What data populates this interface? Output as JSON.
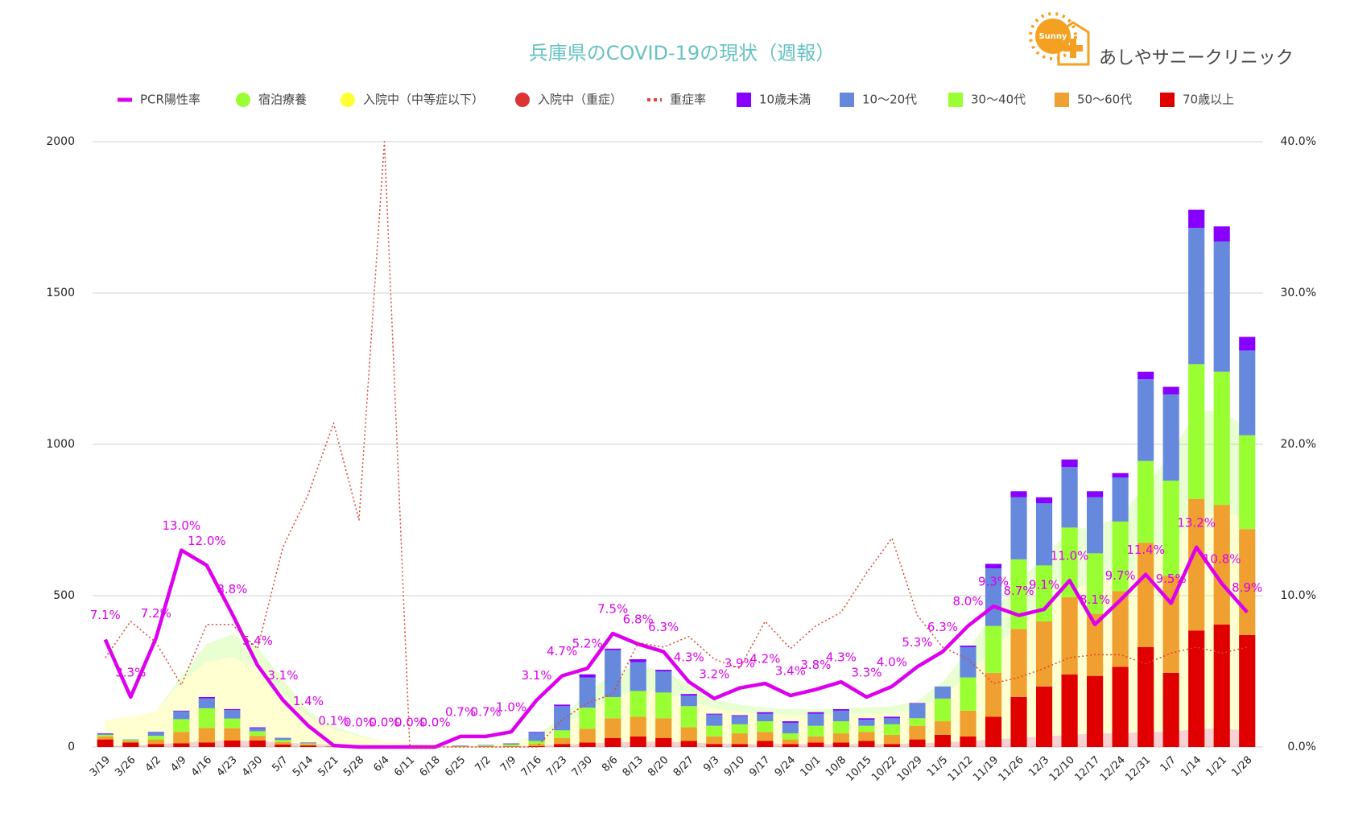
{
  "chart_data": {
    "type": "combo",
    "title": "兵庫県のCOVID-19の現状（週報）",
    "logo_text": "あしやサニークリニック",
    "logo_badge": "Sunny",
    "categories": [
      "3/19",
      "3/26",
      "4/2",
      "4/9",
      "4/16",
      "4/23",
      "4/30",
      "5/7",
      "5/14",
      "5/21",
      "5/28",
      "6/4",
      "6/11",
      "6/18",
      "6/25",
      "7/2",
      "7/9",
      "7/16",
      "7/23",
      "7/30",
      "8/6",
      "8/13",
      "8/20",
      "8/27",
      "9/3",
      "9/10",
      "9/17",
      "9/24",
      "10/1",
      "10/8",
      "10/15",
      "10/22",
      "10/29",
      "11/5",
      "11/12",
      "11/19",
      "11/26",
      "12/3",
      "12/10",
      "12/17",
      "12/24",
      "12/31",
      "1/7",
      "1/14",
      "1/21",
      "1/28"
    ],
    "ylim": [
      0,
      2000
    ],
    "yticks": [
      0,
      500,
      1000,
      1500,
      2000
    ],
    "y2lim": [
      0,
      40
    ],
    "y2ticks": [
      {
        "value": 0,
        "label": "0.0%"
      },
      {
        "value": 10,
        "label": "10.0%"
      },
      {
        "value": 20,
        "label": "20.0%"
      },
      {
        "value": 30,
        "label": "30.0%"
      },
      {
        "value": 40,
        "label": "40.0%"
      }
    ],
    "grid": true,
    "legend": "top",
    "series": [
      {
        "name": "PCR陽性率",
        "type": "line",
        "axis": "y2",
        "color": "#dd00ee",
        "values": [
          7.1,
          3.3,
          7.2,
          13.0,
          12.0,
          8.8,
          5.4,
          3.1,
          1.4,
          0.1,
          0.0,
          0.0,
          0.0,
          0.0,
          0.7,
          0.7,
          1.0,
          3.1,
          4.7,
          5.2,
          7.5,
          6.8,
          6.3,
          4.3,
          3.2,
          3.9,
          4.2,
          3.4,
          3.8,
          4.3,
          3.3,
          4.0,
          5.3,
          6.3,
          8.0,
          9.3,
          8.7,
          9.1,
          11.0,
          8.1,
          9.7,
          11.4,
          9.5,
          13.2,
          10.8,
          8.9
        ],
        "value_labels": [
          "7.1%",
          "3.3%",
          "7.2%",
          "13.0%",
          "12.0%",
          "8.8%",
          "5.4%",
          "3.1%",
          "1.4%",
          "0.1%",
          "0.0%",
          "0.0%",
          "0.0%",
          "0.0%",
          "0.7%",
          "0.7%",
          "1.0%",
          "3.1%",
          "4.7%",
          "5.2%",
          "7.5%",
          "6.8%",
          "6.3%",
          "4.3%",
          "3.2%",
          "3.9%",
          "4.2%",
          "3.4%",
          "3.8%",
          "4.3%",
          "3.3%",
          "4.0%",
          "5.3%",
          "6.3%",
          "8.0%",
          "9.3%",
          "8.7%",
          "9.1%",
          "11.0%",
          "8.1%",
          "9.7%",
          "11.4%",
          "9.5%",
          "13.2%",
          "10.8%",
          "8.9%"
        ]
      },
      {
        "name": "宿泊療養",
        "type": "area",
        "color": "#99ff33",
        "values": [
          0,
          0,
          0,
          20,
          60,
          75,
          70,
          50,
          20,
          10,
          5,
          0,
          0,
          0,
          0,
          0,
          0,
          10,
          30,
          60,
          80,
          80,
          70,
          50,
          30,
          25,
          20,
          20,
          20,
          20,
          20,
          25,
          30,
          50,
          80,
          120,
          150,
          170,
          200,
          180,
          200,
          250,
          300,
          350,
          330,
          300
        ]
      },
      {
        "name": "入院中（中等症以下）",
        "type": "area",
        "color": "#ffff33",
        "values": [
          85,
          95,
          110,
          200,
          260,
          275,
          240,
          160,
          90,
          50,
          30,
          15,
          10,
          5,
          5,
          5,
          10,
          25,
          60,
          110,
          150,
          170,
          165,
          140,
          115,
          105,
          100,
          95,
          95,
          100,
          100,
          100,
          110,
          150,
          220,
          300,
          370,
          420,
          480,
          500,
          520,
          560,
          620,
          700,
          720,
          700
        ]
      },
      {
        "name": "入院中（重症）",
        "type": "area",
        "color": "#dd3333",
        "values": [
          5,
          5,
          8,
          15,
          20,
          22,
          20,
          15,
          10,
          8,
          5,
          3,
          2,
          2,
          2,
          2,
          3,
          5,
          8,
          12,
          15,
          18,
          18,
          15,
          12,
          10,
          10,
          10,
          10,
          10,
          10,
          10,
          12,
          15,
          20,
          25,
          30,
          35,
          40,
          45,
          45,
          50,
          50,
          60,
          60,
          55
        ]
      },
      {
        "name": "重症率",
        "type": "line",
        "axis": "y2",
        "style": "dotted",
        "color": "#dd4433",
        "values": [
          5.9,
          8.3,
          6.9,
          4.1,
          8.1,
          8.1,
          6.5,
          13.2,
          16.7,
          21.4,
          15.0,
          40,
          0,
          0,
          0,
          0,
          0,
          0,
          1.8,
          2.9,
          3.5,
          6.9,
          6.6,
          7.3,
          5.8,
          5.2,
          8.3,
          6.5,
          8.0,
          8.9,
          11.5,
          13.8,
          8.7,
          6.6,
          5.8,
          4.2,
          4.6,
          5.2,
          5.9,
          6.1,
          6.1,
          5.5,
          6.2,
          6.6,
          6.2,
          6.6
        ]
      },
      {
        "name": "10歳未満",
        "type": "bar",
        "color": "#8800ff",
        "values": [
          2,
          0,
          1,
          2,
          4,
          3,
          3,
          1,
          1,
          0,
          0,
          0,
          0,
          0,
          0,
          0,
          1,
          2,
          5,
          10,
          5,
          10,
          5,
          5,
          3,
          3,
          5,
          5,
          5,
          5,
          5,
          5,
          2,
          0,
          5,
          15,
          20,
          20,
          25,
          20,
          15,
          25,
          25,
          60,
          50,
          45
        ]
      },
      {
        "name": "10〜20代",
        "type": "bar",
        "color": "#6688dd",
        "values": [
          3,
          2,
          12,
          26,
          33,
          28,
          10,
          6,
          2,
          0,
          0,
          0,
          0,
          0,
          2,
          2,
          3,
          28,
          80,
          100,
          155,
          95,
          70,
          35,
          37,
          27,
          25,
          35,
          40,
          35,
          20,
          20,
          48,
          40,
          100,
          190,
          205,
          205,
          200,
          185,
          145,
          270,
          285,
          450,
          430,
          280
        ]
      },
      {
        "name": "30〜40代",
        "type": "bar",
        "color": "#99ff33",
        "values": [
          5,
          3,
          12,
          42,
          65,
          32,
          15,
          7,
          3,
          1,
          1,
          1,
          0,
          1,
          1,
          2,
          5,
          10,
          25,
          70,
          70,
          85,
          85,
          70,
          35,
          30,
          35,
          20,
          35,
          40,
          20,
          35,
          25,
          75,
          110,
          155,
          230,
          185,
          230,
          200,
          230,
          270,
          315,
          445,
          440,
          310
        ]
      },
      {
        "name": "50〜60代",
        "type": "bar",
        "color": "#f0a030",
        "values": [
          10,
          5,
          15,
          38,
          48,
          40,
          15,
          8,
          4,
          1,
          0,
          0,
          0,
          0,
          1,
          2,
          2,
          7,
          20,
          45,
          65,
          65,
          65,
          45,
          25,
          35,
          30,
          15,
          20,
          30,
          30,
          30,
          45,
          45,
          85,
          145,
          225,
          215,
          255,
          205,
          250,
          345,
          320,
          435,
          395,
          350
        ]
      },
      {
        "name": "70歳以上",
        "type": "bar",
        "color": "#e00000",
        "values": [
          25,
          15,
          10,
          12,
          15,
          22,
          22,
          8,
          5,
          1,
          1,
          0,
          0,
          0,
          1,
          1,
          1,
          3,
          10,
          15,
          30,
          35,
          30,
          20,
          10,
          10,
          20,
          10,
          15,
          15,
          20,
          10,
          25,
          40,
          35,
          100,
          165,
          200,
          240,
          235,
          265,
          330,
          245,
          385,
          405,
          370
        ]
      }
    ]
  }
}
